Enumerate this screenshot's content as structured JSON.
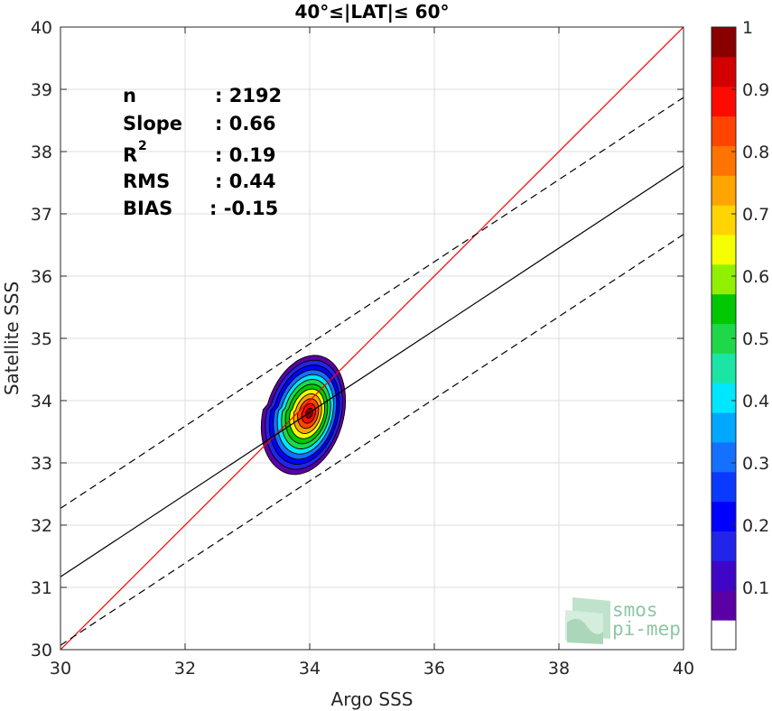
{
  "chart_data": {
    "type": "scatter",
    "title": "40°≤|LAT|≤ 60°",
    "xlabel": "Argo SSS",
    "ylabel": "Satellite SSS",
    "xlim": [
      30,
      40
    ],
    "ylim": [
      30,
      40
    ],
    "xticks": [
      "30",
      "32",
      "34",
      "36",
      "38",
      "40"
    ],
    "yticks": [
      "30",
      "31",
      "32",
      "33",
      "34",
      "35",
      "36",
      "37",
      "38",
      "39",
      "40"
    ],
    "grid": true,
    "density_center": {
      "x": 34.0,
      "y": 33.8
    },
    "lines": [
      {
        "kind": "identity",
        "color": "#ff0000",
        "slope": 1.0,
        "intercept": 0.0
      },
      {
        "kind": "fit",
        "color": "#000000",
        "slope": 0.66,
        "y_at_x30": 31.17
      },
      {
        "kind": "fit-plus",
        "color": "#000000",
        "dashed": true,
        "slope": 0.66,
        "y_at_x30": 32.27
      },
      {
        "kind": "fit-minus",
        "color": "#000000",
        "dashed": true,
        "slope": 0.66,
        "y_at_x30": 30.07
      }
    ],
    "stats": [
      {
        "label": "n",
        "value": ": 2192"
      },
      {
        "label": "Slope",
        "value": ": 0.66"
      },
      {
        "label": "R",
        "sup": "2",
        "value": ": 0.19"
      },
      {
        "label": "RMS",
        "value": ": 0.44"
      },
      {
        "label": "BIAS",
        "value": ": -0.15"
      }
    ],
    "colorbar": {
      "range": [
        0,
        1
      ],
      "ticks": [
        "0.1",
        "0.2",
        "0.3",
        "0.4",
        "0.5",
        "0.6",
        "0.7",
        "0.8",
        "0.9",
        "1"
      ],
      "colors": [
        "#ffffff",
        "#5b00a5",
        "#3f06c8",
        "#2224ea",
        "#0000ff",
        "#0a39ff",
        "#1470ff",
        "#00a8ff",
        "#00e6ff",
        "#1ae5a5",
        "#1ed84a",
        "#00c800",
        "#91f000",
        "#f5ff00",
        "#ffd400",
        "#ffa400",
        "#ff7300",
        "#ff4400",
        "#ff0a00",
        "#d20000",
        "#8a0000"
      ]
    }
  },
  "logo": {
    "line1": "smos",
    "line2": "pi-mep"
  }
}
